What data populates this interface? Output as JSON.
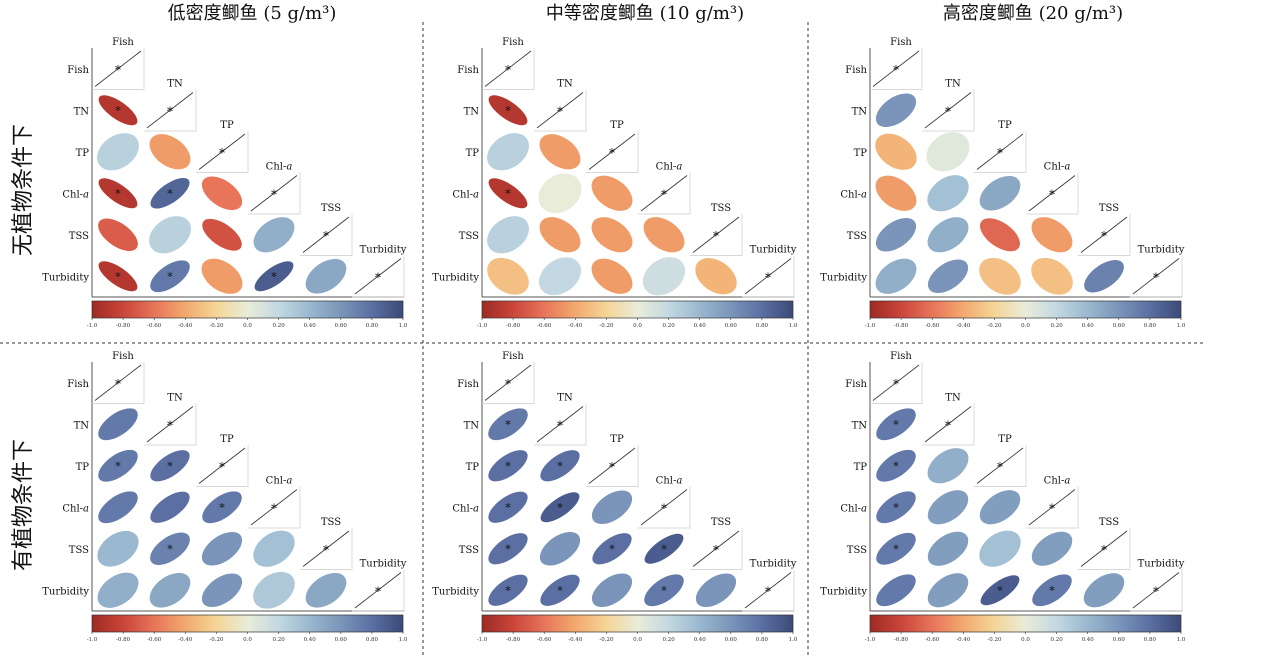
{
  "column_titles": [
    "低密度鲫鱼 (5 g/m³)",
    "中等密度鲫鱼 (10 g/m³)",
    "高密度鲫鱼 (20 g/m³)"
  ],
  "row_titles": [
    "无植物条件下",
    "有植物条件下"
  ],
  "colorbar": {
    "ticks": [
      "-1.0",
      "-0.80",
      "-0.60",
      "-0.40",
      "-0.20",
      "0.0",
      "0.20",
      "0.40",
      "0.60",
      "0.80",
      "1.0"
    ],
    "stops": [
      "#9e2a24",
      "#c9453a",
      "#e8745a",
      "#f2a96e",
      "#f4d596",
      "#e9ecd8",
      "#c3d8e2",
      "#9ab8cf",
      "#7a95b9",
      "#5b6fa3",
      "#3b4a78"
    ]
  },
  "chart_data": {
    "type": "heatmap",
    "variables": [
      "Fish",
      "TN",
      "TP",
      "Chl-a",
      "TSS",
      "Turbidity"
    ],
    "value_range": [
      -1.0,
      1.0
    ],
    "panels": [
      {
        "row": "无植物条件下",
        "col": "低密度鲫鱼 (5 g/m³)",
        "values": [
          [
            -0.9
          ],
          [
            0.25,
            -0.45
          ],
          [
            -0.9,
            0.85,
            -0.6
          ],
          [
            -0.7,
            0.25,
            -0.75,
            0.45
          ],
          [
            -0.9,
            0.75,
            -0.45,
            0.9,
            0.5
          ]
        ],
        "sig": [
          [
            true
          ],
          [
            false,
            false
          ],
          [
            true,
            true,
            false
          ],
          [
            false,
            false,
            false,
            false
          ],
          [
            true,
            true,
            false,
            true,
            false
          ]
        ]
      },
      {
        "row": "无植物条件下",
        "col": "中等密度鲫鱼 (10 g/m³)",
        "values": [
          [
            -0.9
          ],
          [
            0.25,
            -0.45
          ],
          [
            -0.9,
            0.0,
            -0.45
          ],
          [
            0.25,
            -0.45,
            -0.45,
            -0.45
          ],
          [
            -0.3,
            0.2,
            -0.45,
            0.15,
            -0.35
          ]
        ],
        "sig": [
          [
            true
          ],
          [
            false,
            false
          ],
          [
            true,
            false,
            false
          ],
          [
            false,
            false,
            false,
            false
          ],
          [
            false,
            false,
            false,
            false,
            false
          ]
        ]
      },
      {
        "row": "无植物条件下",
        "col": "高密度鲫鱼 (20 g/m³)",
        "values": [
          [
            0.6
          ],
          [
            -0.35,
            0.05
          ],
          [
            -0.45,
            0.35,
            0.5
          ],
          [
            0.6,
            0.45,
            -0.65,
            -0.45
          ],
          [
            0.45,
            0.6,
            -0.3,
            -0.3,
            0.7
          ]
        ],
        "sig": [
          [
            false
          ],
          [
            false,
            false
          ],
          [
            false,
            false,
            false
          ],
          [
            false,
            false,
            false,
            false
          ],
          [
            false,
            false,
            false,
            false,
            false
          ]
        ]
      },
      {
        "row": "有植物条件下",
        "col": "低密度鲫鱼 (5 g/m³)",
        "values": [
          [
            0.75
          ],
          [
            0.75,
            0.8
          ],
          [
            0.75,
            0.8,
            0.75
          ],
          [
            0.4,
            0.7,
            0.6,
            0.35
          ],
          [
            0.45,
            0.5,
            0.6,
            0.3,
            0.5
          ]
        ],
        "sig": [
          [
            false
          ],
          [
            true,
            true
          ],
          [
            false,
            false,
            true
          ],
          [
            false,
            true,
            false,
            false
          ],
          [
            false,
            false,
            false,
            false,
            false
          ]
        ]
      },
      {
        "row": "有植物条件下",
        "col": "中等密度鲫鱼 (10 g/m³)",
        "values": [
          [
            0.75
          ],
          [
            0.8,
            0.8
          ],
          [
            0.8,
            0.9,
            0.6
          ],
          [
            0.8,
            0.6,
            0.8,
            0.9
          ],
          [
            0.8,
            0.8,
            0.6,
            0.75,
            0.6
          ]
        ],
        "sig": [
          [
            true
          ],
          [
            true,
            true
          ],
          [
            true,
            true,
            false
          ],
          [
            true,
            false,
            true,
            true
          ],
          [
            true,
            true,
            false,
            true,
            false
          ]
        ]
      },
      {
        "row": "有植物条件下",
        "col": "高密度鲫鱼 (20 g/m³)",
        "values": [
          [
            0.75
          ],
          [
            0.75,
            0.45
          ],
          [
            0.75,
            0.55,
            0.55
          ],
          [
            0.75,
            0.55,
            0.35,
            0.55
          ],
          [
            0.75,
            0.55,
            0.9,
            0.75,
            0.55
          ]
        ],
        "sig": [
          [
            true
          ],
          [
            true,
            false
          ],
          [
            true,
            false,
            false
          ],
          [
            true,
            false,
            false,
            false
          ],
          [
            false,
            false,
            true,
            true,
            false
          ]
        ]
      }
    ]
  }
}
